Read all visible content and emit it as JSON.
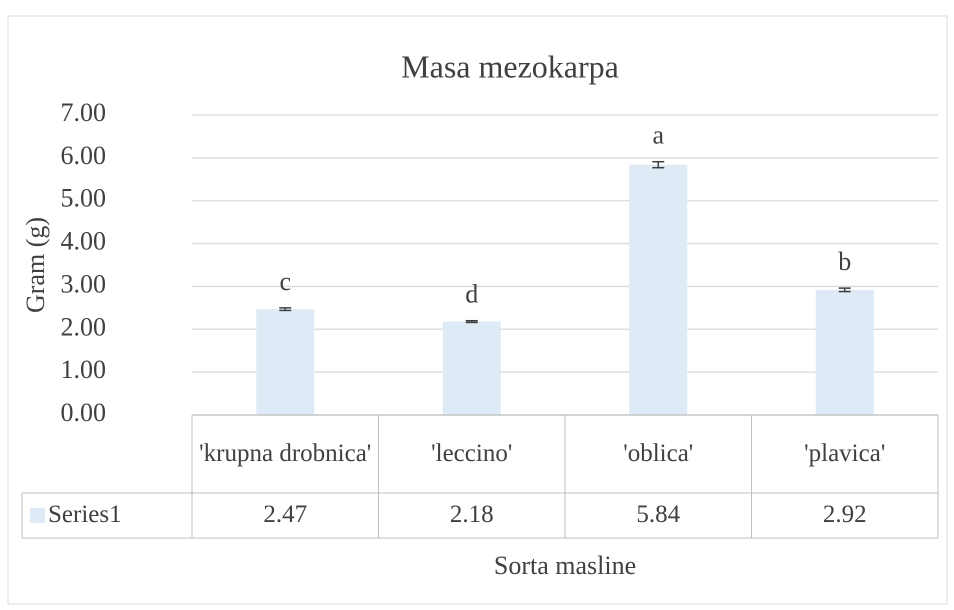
{
  "chart_data": {
    "type": "bar",
    "title": "Masa mezokarpa",
    "categories": [
      "'krupna drobnica'",
      "'leccino'",
      "'oblica'",
      "'plavica'"
    ],
    "series": [
      {
        "name": "Series1",
        "color": "#deebf7",
        "values": [
          2.47,
          2.18,
          5.84,
          2.92
        ],
        "errors": [
          0.03,
          0.02,
          0.07,
          0.04
        ]
      }
    ],
    "annotations": [
      "c",
      "d",
      "a",
      "b"
    ],
    "xlabel": "Sorta masline",
    "ylabel": "Gram (g)",
    "ylim": [
      0,
      7
    ],
    "yticks": [
      {
        "value": 0,
        "label": "0.00"
      },
      {
        "value": 1,
        "label": "1.00"
      },
      {
        "value": 2,
        "label": "2.00"
      },
      {
        "value": 3,
        "label": "3.00"
      },
      {
        "value": 4,
        "label": "4.00"
      },
      {
        "value": 5,
        "label": "5.00"
      },
      {
        "value": 6,
        "label": "6.00"
      },
      {
        "value": 7,
        "label": "7.00"
      }
    ],
    "grid": true,
    "data_table": true
  }
}
